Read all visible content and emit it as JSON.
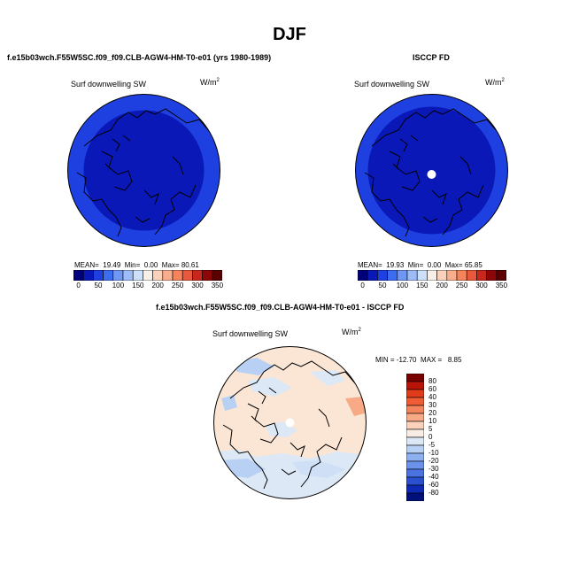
{
  "page": {
    "title": "DJF"
  },
  "panels": {
    "model": {
      "title": "f.e15b03wch.F55W5SC.f09_f09.CLB-AGW4-HM-T0-e01 (yrs 1980-1989)",
      "label": "Surf downwelling SW",
      "units_base": "W/m",
      "units_exp": "2",
      "stats": {
        "mean_label": "MEAN=",
        "mean": "19.49",
        "min_label": "Min=",
        "min": "0.00",
        "max_label": "Max=",
        "max": "80.61"
      }
    },
    "obs": {
      "title": "ISCCP FD",
      "label": "Surf downwelling SW",
      "units_base": "W/m",
      "units_exp": "2",
      "stats": {
        "mean_label": "MEAN=",
        "mean": "19.93",
        "min_label": "Min=",
        "min": "0.00",
        "max_label": "Max=",
        "max": "65.85"
      }
    },
    "diff": {
      "title": "f.e15b03wch.F55W5SC.f09_f09.CLB-AGW4-HM-T0-e01 - ISCCP FD",
      "label": "Surf downwelling SW",
      "units_base": "W/m",
      "units_exp": "2",
      "minmax": {
        "min_label": "MIN =",
        "min": "-12.70",
        "max_label": "MAX =",
        "max": "8.85"
      }
    }
  },
  "colorbars": {
    "abs": {
      "ticks": [
        "0",
        "50",
        "100",
        "150",
        "200",
        "250",
        "300",
        "350"
      ],
      "colors": [
        "#00007a",
        "#0a18b8",
        "#1e40e0",
        "#3c6cf0",
        "#6e98f4",
        "#9cbcf8",
        "#cce0fa",
        "#f6f0e8",
        "#fad2bc",
        "#f8ae8c",
        "#f4845c",
        "#e8583c",
        "#c8281c",
        "#8c0808",
        "#5a0000"
      ]
    },
    "diff": {
      "ticks": [
        "80",
        "60",
        "40",
        "30",
        "20",
        "10",
        "5",
        "0",
        "-5",
        "-10",
        "-20",
        "-30",
        "-40",
        "-60",
        "-80"
      ],
      "colors": [
        "#7a0000",
        "#b81408",
        "#e03c1c",
        "#f05c34",
        "#f4845c",
        "#f8aa86",
        "#fad2bc",
        "#f8ece4",
        "#dce8f6",
        "#b8d0f4",
        "#8cb0f0",
        "#6a92ea",
        "#4a72e0",
        "#2a50d0",
        "#0e2ab4",
        "#00107a"
      ]
    }
  },
  "chart_data": [
    {
      "type": "heatmap",
      "projection": "polar-stereographic (north pole)",
      "title": "f.e15b03wch.F55W5SC.f09_f09.CLB-AGW4-HM-T0-e01 (yrs 1980-1989)",
      "variable": "Surf downwelling SW",
      "units": "W/m2",
      "levels": [
        0,
        50,
        100,
        150,
        200,
        250,
        300,
        350
      ],
      "mean": 19.49,
      "min": 0.0,
      "max": 80.61
    },
    {
      "type": "heatmap",
      "projection": "polar-stereographic (north pole)",
      "title": "ISCCP FD",
      "variable": "Surf downwelling SW",
      "units": "W/m2",
      "levels": [
        0,
        50,
        100,
        150,
        200,
        250,
        300,
        350
      ],
      "mean": 19.93,
      "min": 0.0,
      "max": 65.85
    },
    {
      "type": "heatmap",
      "projection": "polar-stereographic (north pole)",
      "title": "f.e15b03wch.F55W5SC.f09_f09.CLB-AGW4-HM-T0-e01 - ISCCP FD",
      "variable": "Surf downwelling SW",
      "units": "W/m2",
      "levels": [
        -80,
        -60,
        -40,
        -30,
        -20,
        -10,
        -5,
        0,
        5,
        10,
        20,
        30,
        40,
        60,
        80
      ],
      "min": -12.7,
      "max": 8.85
    }
  ]
}
